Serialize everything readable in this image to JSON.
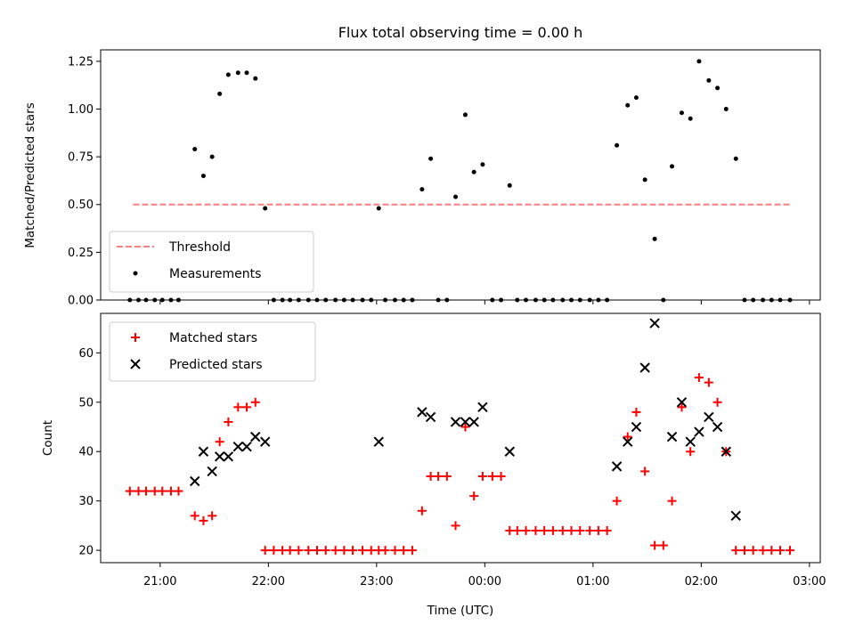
{
  "chart_data": [
    {
      "type": "scatter",
      "title": "Flux total observing time = 0.00 h",
      "xlabel": "",
      "ylabel": "Matched/Predicted stars",
      "ylim": [
        0,
        1.31
      ],
      "yticks": [
        "0.00",
        "0.25",
        "0.50",
        "0.75",
        "1.00",
        "1.25"
      ],
      "legend_position": "lower-left",
      "threshold": {
        "name": "Threshold",
        "value": 0.5,
        "x_start": -3.25,
        "x_end": 2.83,
        "color": "#ff7f7f"
      },
      "measurements_name": "Measurements",
      "measurements": [
        [
          -3.28,
          0
        ],
        [
          -3.2,
          0
        ],
        [
          -3.13,
          0
        ],
        [
          -3.05,
          0
        ],
        [
          -2.98,
          0
        ],
        [
          -2.9,
          0
        ],
        [
          -2.83,
          0
        ],
        [
          -2.68,
          0.79
        ],
        [
          -2.6,
          0.65
        ],
        [
          -2.52,
          0.75
        ],
        [
          -2.45,
          1.08
        ],
        [
          -2.37,
          1.18
        ],
        [
          -2.28,
          1.19
        ],
        [
          -2.2,
          1.19
        ],
        [
          -2.12,
          1.16
        ],
        [
          -2.03,
          0.48
        ],
        [
          -1.95,
          0
        ],
        [
          -1.87,
          0
        ],
        [
          -1.8,
          0
        ],
        [
          -1.72,
          0
        ],
        [
          -1.63,
          0
        ],
        [
          -1.55,
          0
        ],
        [
          -1.47,
          0
        ],
        [
          -1.38,
          0
        ],
        [
          -1.3,
          0
        ],
        [
          -1.22,
          0
        ],
        [
          -1.13,
          0
        ],
        [
          -1.05,
          0
        ],
        [
          -0.98,
          0.48
        ],
        [
          -0.92,
          0
        ],
        [
          -0.83,
          0
        ],
        [
          -0.75,
          0
        ],
        [
          -0.67,
          0
        ],
        [
          -0.58,
          0.58
        ],
        [
          -0.5,
          0.74
        ],
        [
          -0.43,
          0
        ],
        [
          -0.35,
          0
        ],
        [
          -0.27,
          0.54
        ],
        [
          -0.18,
          0.97
        ],
        [
          -0.1,
          0.67
        ],
        [
          -0.02,
          0.71
        ],
        [
          0.07,
          0
        ],
        [
          0.15,
          0
        ],
        [
          0.23,
          0.6
        ],
        [
          0.3,
          0
        ],
        [
          0.38,
          0
        ],
        [
          0.47,
          0
        ],
        [
          0.55,
          0
        ],
        [
          0.63,
          0
        ],
        [
          0.72,
          0
        ],
        [
          0.8,
          0
        ],
        [
          0.88,
          0
        ],
        [
          0.97,
          0
        ],
        [
          1.05,
          0
        ],
        [
          1.13,
          0
        ],
        [
          1.22,
          0.81
        ],
        [
          1.32,
          1.02
        ],
        [
          1.4,
          1.06
        ],
        [
          1.48,
          0.63
        ],
        [
          1.57,
          0.32
        ],
        [
          1.65,
          0
        ],
        [
          1.73,
          0.7
        ],
        [
          1.82,
          0.98
        ],
        [
          1.9,
          0.95
        ],
        [
          1.98,
          1.25
        ],
        [
          2.07,
          1.15
        ],
        [
          2.15,
          1.11
        ],
        [
          2.23,
          1.0
        ],
        [
          2.32,
          0.74
        ],
        [
          2.4,
          0
        ],
        [
          2.48,
          0
        ],
        [
          2.57,
          0
        ],
        [
          2.65,
          0
        ],
        [
          2.73,
          0
        ],
        [
          2.82,
          0
        ]
      ]
    },
    {
      "type": "scatter",
      "title": "",
      "xlabel": "Time (UTC)",
      "ylabel": "Count",
      "xlim": [
        -3.55,
        3.1
      ],
      "ylim": [
        17.5,
        68
      ],
      "yticks": [
        "20",
        "30",
        "40",
        "50",
        "60"
      ],
      "xticks": [
        "21:00",
        "22:00",
        "23:00",
        "00:00",
        "01:00",
        "02:00",
        "03:00"
      ],
      "legend_position": "top-left",
      "series": [
        {
          "name": "Matched stars",
          "marker": "plus",
          "color": "#ff0000",
          "points": [
            [
              -3.28,
              32
            ],
            [
              -3.2,
              32
            ],
            [
              -3.13,
              32
            ],
            [
              -3.05,
              32
            ],
            [
              -2.98,
              32
            ],
            [
              -2.9,
              32
            ],
            [
              -2.83,
              32
            ],
            [
              -2.68,
              27
            ],
            [
              -2.6,
              26
            ],
            [
              -2.52,
              27
            ],
            [
              -2.45,
              42
            ],
            [
              -2.37,
              46
            ],
            [
              -2.28,
              49
            ],
            [
              -2.2,
              49
            ],
            [
              -2.12,
              50
            ],
            [
              -2.03,
              20
            ],
            [
              -1.95,
              20
            ],
            [
              -1.87,
              20
            ],
            [
              -1.8,
              20
            ],
            [
              -1.72,
              20
            ],
            [
              -1.63,
              20
            ],
            [
              -1.55,
              20
            ],
            [
              -1.47,
              20
            ],
            [
              -1.38,
              20
            ],
            [
              -1.3,
              20
            ],
            [
              -1.22,
              20
            ],
            [
              -1.13,
              20
            ],
            [
              -1.05,
              20
            ],
            [
              -0.98,
              20
            ],
            [
              -0.92,
              20
            ],
            [
              -0.83,
              20
            ],
            [
              -0.75,
              20
            ],
            [
              -0.67,
              20
            ],
            [
              -0.58,
              28
            ],
            [
              -0.5,
              35
            ],
            [
              -0.43,
              35
            ],
            [
              -0.35,
              35
            ],
            [
              -0.27,
              25
            ],
            [
              -0.18,
              45
            ],
            [
              -0.1,
              31
            ],
            [
              -0.02,
              35
            ],
            [
              0.07,
              35
            ],
            [
              0.15,
              35
            ],
            [
              0.23,
              24
            ],
            [
              0.3,
              24
            ],
            [
              0.38,
              24
            ],
            [
              0.47,
              24
            ],
            [
              0.55,
              24
            ],
            [
              0.63,
              24
            ],
            [
              0.72,
              24
            ],
            [
              0.8,
              24
            ],
            [
              0.88,
              24
            ],
            [
              0.97,
              24
            ],
            [
              1.05,
              24
            ],
            [
              1.13,
              24
            ],
            [
              1.22,
              30
            ],
            [
              1.32,
              43
            ],
            [
              1.4,
              48
            ],
            [
              1.48,
              36
            ],
            [
              1.57,
              21
            ],
            [
              1.65,
              21
            ],
            [
              1.73,
              30
            ],
            [
              1.82,
              49
            ],
            [
              1.9,
              40
            ],
            [
              1.98,
              55
            ],
            [
              2.07,
              54
            ],
            [
              2.15,
              50
            ],
            [
              2.23,
              40
            ],
            [
              2.32,
              20
            ],
            [
              2.4,
              20
            ],
            [
              2.48,
              20
            ],
            [
              2.57,
              20
            ],
            [
              2.65,
              20
            ],
            [
              2.73,
              20
            ],
            [
              2.82,
              20
            ]
          ]
        },
        {
          "name": "Predicted stars",
          "marker": "x",
          "color": "#000000",
          "points": [
            [
              -2.68,
              34
            ],
            [
              -2.6,
              40
            ],
            [
              -2.52,
              36
            ],
            [
              -2.45,
              39
            ],
            [
              -2.37,
              39
            ],
            [
              -2.28,
              41
            ],
            [
              -2.2,
              41
            ],
            [
              -2.12,
              43
            ],
            [
              -2.03,
              42
            ],
            [
              -0.98,
              42
            ],
            [
              -0.58,
              48
            ],
            [
              -0.5,
              47
            ],
            [
              -0.27,
              46
            ],
            [
              -0.18,
              46
            ],
            [
              -0.1,
              46
            ],
            [
              -0.02,
              49
            ],
            [
              0.23,
              40
            ],
            [
              1.22,
              37
            ],
            [
              1.32,
              42
            ],
            [
              1.4,
              45
            ],
            [
              1.48,
              57
            ],
            [
              1.57,
              66
            ],
            [
              1.73,
              43
            ],
            [
              1.82,
              50
            ],
            [
              1.9,
              42
            ],
            [
              1.98,
              44
            ],
            [
              2.07,
              47
            ],
            [
              2.15,
              45
            ],
            [
              2.23,
              40
            ],
            [
              2.32,
              27
            ]
          ]
        }
      ]
    }
  ]
}
